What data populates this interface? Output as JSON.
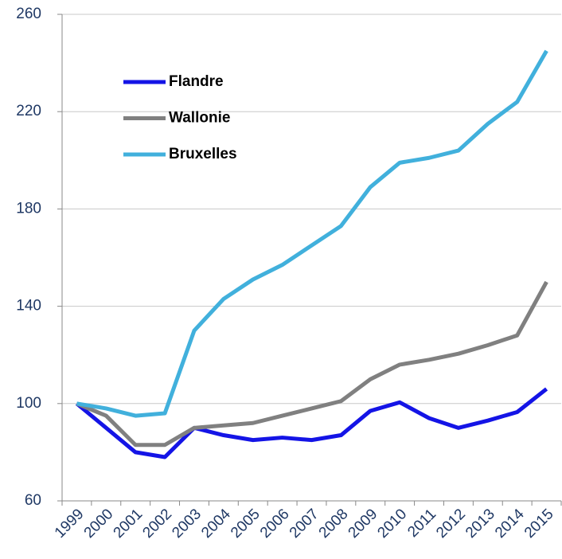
{
  "chart_data": {
    "type": "line",
    "categories": [
      "1999",
      "2000",
      "2001",
      "2002",
      "2003",
      "2004",
      "2005",
      "2006",
      "2007",
      "2008",
      "2009",
      "2010",
      "2011",
      "2012",
      "2013",
      "2014",
      "2015"
    ],
    "series": [
      {
        "name": "Flandre",
        "color": "#1414e6",
        "values": [
          100,
          90,
          80,
          78,
          90,
          87,
          85,
          86,
          85,
          87,
          97,
          100.5,
          94,
          90,
          93,
          96.5,
          106
        ]
      },
      {
        "name": "Wallonie",
        "color": "#808080",
        "values": [
          100,
          95,
          83,
          83,
          90,
          91,
          92,
          95,
          98,
          101,
          110,
          116,
          118,
          120.5,
          124,
          128,
          150
        ]
      },
      {
        "name": "Bruxelles",
        "color": "#41b0dc",
        "values": [
          100,
          98,
          95,
          96,
          130,
          143,
          151,
          157,
          165,
          173,
          189,
          199,
          201,
          204,
          215,
          224,
          245
        ]
      }
    ],
    "ylim": [
      60,
      260
    ],
    "yticks": [
      60,
      100,
      140,
      180,
      220,
      260
    ],
    "grid": true,
    "legend": "top-left"
  }
}
